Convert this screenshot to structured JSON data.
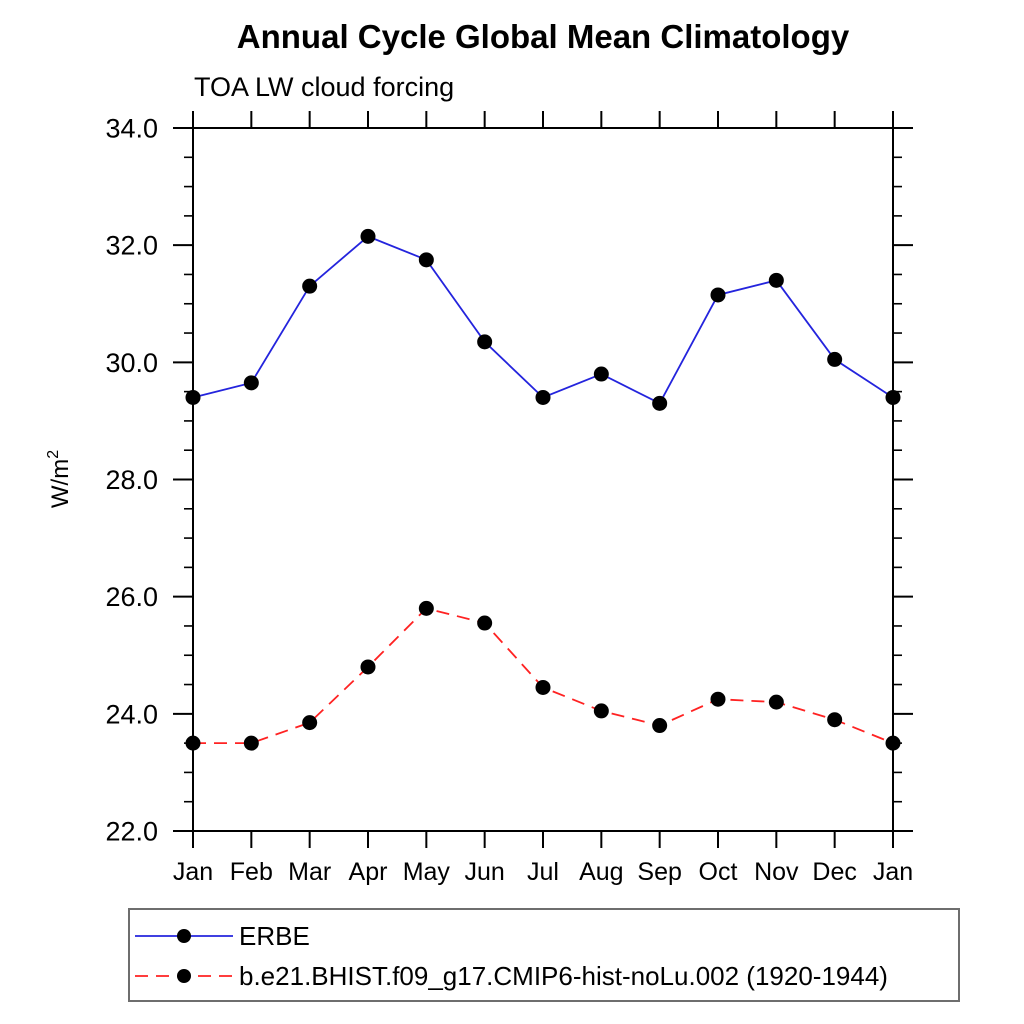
{
  "page": {
    "background": "#ffffff"
  },
  "chart_data": {
    "type": "line",
    "title": "Annual Cycle Global Mean Climatology",
    "subtitle": "TOA LW cloud forcing",
    "ylabel": "W/m^2",
    "xlabel": "",
    "categories": [
      "Jan",
      "Feb",
      "Mar",
      "Apr",
      "May",
      "Jun",
      "Jul",
      "Aug",
      "Sep",
      "Oct",
      "Nov",
      "Dec",
      "Jan"
    ],
    "ylim": [
      22.0,
      34.0
    ],
    "ytick_major_interval": 2.0,
    "ytick_minor_interval": 0.5,
    "ytick_labels": [
      "22.0",
      "24.0",
      "26.0",
      "28.0",
      "30.0",
      "32.0",
      "34.0"
    ],
    "grid": false,
    "legend_position": "bottom",
    "axis_color": "#000000",
    "marker_color": "#000000",
    "series": [
      {
        "name": "ERBE",
        "color": "#2424dd",
        "line_style": "solid",
        "marker": "filled-circle",
        "values": [
          29.4,
          29.65,
          31.3,
          32.15,
          31.75,
          30.35,
          29.4,
          29.8,
          29.3,
          31.15,
          31.4,
          30.05,
          29.4
        ]
      },
      {
        "name": "b.e21.BHIST.f09_g17.CMIP6-hist-noLu.002 (1920-1944)",
        "color": "#ff2222",
        "line_style": "dashed",
        "marker": "filled-circle",
        "values": [
          23.5,
          23.5,
          23.85,
          24.8,
          25.8,
          25.55,
          24.45,
          24.05,
          23.8,
          24.25,
          24.2,
          23.9,
          23.5
        ]
      }
    ]
  }
}
